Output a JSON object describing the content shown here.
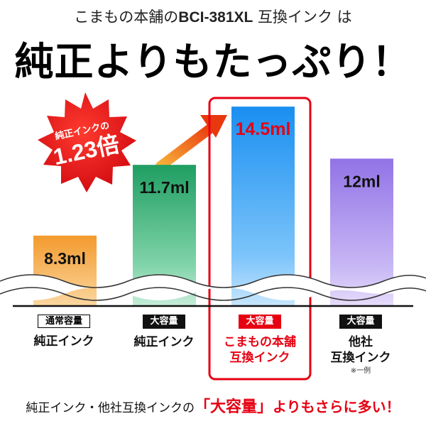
{
  "header": {
    "subtitle_pre": "こまもの本舗の",
    "subtitle_code": "BCI-381XL",
    "subtitle_post": " 互換インク は",
    "headline": "純正よりもたっぷり！"
  },
  "badge": {
    "line1": "純正インクの",
    "line2": "1.23倍",
    "color": "#e60012"
  },
  "colors": {
    "orange": "#f6a43a",
    "green": "#24a669",
    "blue": "#1e96f0",
    "purple": "#9b7ce8",
    "highlight": "#e60012"
  },
  "chart_data": {
    "type": "bar",
    "categories": [
      "純正インク（通常容量）",
      "純正インク（大容量）",
      "こまもの本舗 互換インク",
      "他社 互換インク"
    ],
    "values": [
      8.3,
      11.7,
      14.5,
      12
    ],
    "unit": "ml",
    "value_labels": [
      "8.3ml",
      "11.7ml",
      "14.5ml",
      "12ml"
    ],
    "highlighted_index": 2,
    "axis_break": true,
    "title": "",
    "xlabel": "",
    "ylabel": ""
  },
  "columns": [
    {
      "tag": "通常容量",
      "name_lines": [
        "純正インク"
      ],
      "note": ""
    },
    {
      "tag": "大容量",
      "name_lines": [
        "純正インク"
      ],
      "note": ""
    },
    {
      "tag": "大容量",
      "name_lines": [
        "こまもの本舗",
        "互換インク"
      ],
      "note": ""
    },
    {
      "tag": "大容量",
      "name_lines": [
        "他社",
        "互換インク"
      ],
      "note": "※一例"
    }
  ],
  "footer": {
    "pre": "純正インク・他社互換インクの",
    "emphasis": "「大容量」",
    "post": "よりもさらに多い！"
  }
}
